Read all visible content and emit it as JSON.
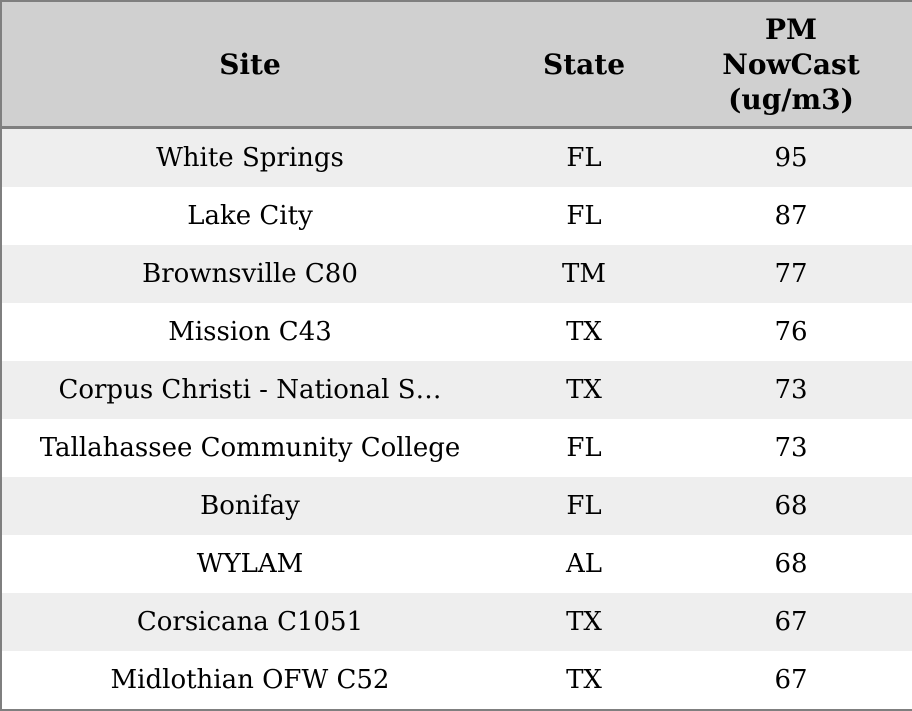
{
  "colors": {
    "header_bg": "#d0d0d0",
    "row_stripe_bg": "#eeeeee",
    "row_bg": "#ffffff",
    "border": "#7f7f7f",
    "text": "#000000"
  },
  "table": {
    "columns": [
      {
        "id": "site",
        "label": "Site"
      },
      {
        "id": "state",
        "label": "State"
      },
      {
        "id": "pm",
        "label": "PM\nNowCast\n(ug/m3)"
      }
    ],
    "rows": [
      {
        "site": "White Springs",
        "state": "FL",
        "pm": "95"
      },
      {
        "site": "Lake City",
        "state": "FL",
        "pm": "87"
      },
      {
        "site": "Brownsville C80",
        "state": "TM",
        "pm": "77"
      },
      {
        "site": "Mission C43",
        "state": "TX",
        "pm": "76"
      },
      {
        "site": "Corpus Christi - National S…",
        "state": "TX",
        "pm": "73"
      },
      {
        "site": "Tallahassee Community College",
        "state": "FL",
        "pm": "73"
      },
      {
        "site": "Bonifay",
        "state": "FL",
        "pm": "68"
      },
      {
        "site": "WYLAM",
        "state": "AL",
        "pm": "68"
      },
      {
        "site": "Corsicana C1051",
        "state": "TX",
        "pm": "67"
      },
      {
        "site": "Midlothian OFW C52",
        "state": "TX",
        "pm": "67"
      }
    ]
  },
  "chart_data": {
    "type": "table",
    "title": "",
    "columns": [
      "Site",
      "State",
      "PM NowCast (ug/m3)"
    ],
    "rows": [
      [
        "White Springs",
        "FL",
        95
      ],
      [
        "Lake City",
        "FL",
        87
      ],
      [
        "Brownsville C80",
        "TM",
        77
      ],
      [
        "Mission C43",
        "TX",
        76
      ],
      [
        "Corpus Christi - National S…",
        "TX",
        73
      ],
      [
        "Tallahassee Community College",
        "FL",
        73
      ],
      [
        "Bonifay",
        "FL",
        68
      ],
      [
        "WYLAM",
        "AL",
        68
      ],
      [
        "Corsicana C1051",
        "TX",
        67
      ],
      [
        "Midlothian OFW C52",
        "TX",
        67
      ]
    ],
    "layout_hints": {
      "header_background": "#d0d0d0",
      "zebra_striping": true,
      "stripe_background": "#eeeeee",
      "text_align": "center"
    }
  }
}
